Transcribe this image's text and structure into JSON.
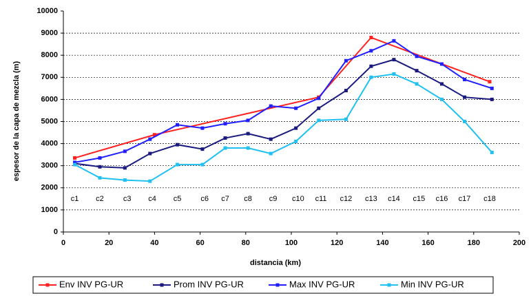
{
  "chart_data": {
    "type": "line",
    "x_label": "distancia (km)",
    "y_label": "espesor de la capa de mezcla (m)",
    "xlim": [
      0,
      200
    ],
    "xticks": [
      0,
      20,
      40,
      60,
      80,
      100,
      120,
      140,
      160,
      180,
      200
    ],
    "ylim": [
      0,
      10000
    ],
    "yticks": [
      0,
      1000,
      2000,
      3000,
      4000,
      5000,
      6000,
      7000,
      8000,
      9000,
      10000
    ],
    "grid": true,
    "legend": "bottom",
    "annotations": [
      {
        "text": "c1",
        "x": 5
      },
      {
        "text": "c2",
        "x": 16
      },
      {
        "text": "c3",
        "x": 28
      },
      {
        "text": "c4",
        "x": 39
      },
      {
        "text": "c5",
        "x": 50
      },
      {
        "text": "c6",
        "x": 62
      },
      {
        "text": "c7",
        "x": 71
      },
      {
        "text": "c8",
        "x": 81
      },
      {
        "text": "c9",
        "x": 92
      },
      {
        "text": "c10",
        "x": 103
      },
      {
        "text": "c11",
        "x": 113
      },
      {
        "text": "c12",
        "x": 124
      },
      {
        "text": "c13",
        "x": 135
      },
      {
        "text": "c14",
        "x": 145
      },
      {
        "text": "c15",
        "x": 156
      },
      {
        "text": "c16",
        "x": 166
      },
      {
        "text": "c17",
        "x": 176
      },
      {
        "text": "c18",
        "x": 187
      }
    ],
    "annotation_y": 1500,
    "series": [
      {
        "name": "Env INV PG-UR",
        "color": "#ff2020",
        "x": [
          5,
          40,
          112,
          135,
          187
        ],
        "values": [
          3350,
          4400,
          6100,
          8800,
          6800
        ]
      },
      {
        "name": "Prom INV PG-UR",
        "color": "#1a1a80",
        "x": [
          5,
          16,
          27,
          38,
          50,
          61,
          71,
          81,
          91,
          102,
          112,
          124,
          135,
          145,
          155,
          166,
          176,
          188
        ],
        "values": [
          3100,
          2950,
          2900,
          3550,
          3950,
          3750,
          4250,
          4450,
          4200,
          4700,
          5600,
          6400,
          7500,
          7800,
          7300,
          6700,
          6100,
          6000
        ]
      },
      {
        "name": "Max INV PG-UR",
        "color": "#2020ff",
        "x": [
          5,
          16,
          27,
          38,
          50,
          61,
          71,
          81,
          91,
          102,
          112,
          124,
          135,
          145,
          155,
          166,
          176,
          188
        ],
        "values": [
          3150,
          3350,
          3650,
          4200,
          4850,
          4700,
          4900,
          5050,
          5700,
          5600,
          6050,
          7750,
          8200,
          8650,
          7950,
          7600,
          6900,
          6500
        ]
      },
      {
        "name": "Min INV PG-UR",
        "color": "#20c0f0",
        "x": [
          5,
          16,
          27,
          38,
          50,
          61,
          71,
          81,
          91,
          102,
          112,
          124,
          135,
          145,
          155,
          166,
          176,
          188
        ],
        "values": [
          3050,
          2450,
          2350,
          2300,
          3050,
          3050,
          3800,
          3800,
          3550,
          4100,
          5050,
          5100,
          7000,
          7150,
          6700,
          6000,
          5000,
          3600
        ]
      }
    ]
  }
}
